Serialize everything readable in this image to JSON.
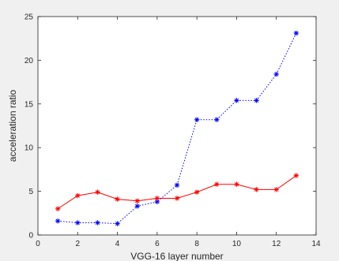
{
  "figure": {
    "background": "#f0f0f0",
    "axes_background": "#ffffff"
  },
  "chart_data": {
    "type": "line",
    "title": "",
    "xlabel": "VGG-16 layer number",
    "ylabel": "acceleration ratio",
    "xlim": [
      0,
      14
    ],
    "ylim": [
      0,
      25
    ],
    "xticks": [
      0,
      2,
      4,
      6,
      8,
      10,
      12,
      14
    ],
    "yticks": [
      0,
      5,
      10,
      15,
      20,
      25
    ],
    "grid": false,
    "legend": false,
    "x": [
      1,
      2,
      3,
      4,
      5,
      6,
      7,
      8,
      9,
      10,
      11,
      12,
      13
    ],
    "series": [
      {
        "color": "#0000ff",
        "line_style": "dotted",
        "marker": "asterisk",
        "values": [
          1.6,
          1.4,
          1.4,
          1.3,
          3.3,
          3.8,
          5.7,
          13.2,
          13.2,
          15.4,
          15.4,
          18.4,
          23.1
        ]
      },
      {
        "color": "#ff0000",
        "line_style": "solid",
        "marker": "asterisk",
        "values": [
          3.0,
          4.5,
          4.9,
          4.1,
          3.9,
          4.2,
          4.2,
          4.9,
          5.8,
          5.8,
          5.2,
          5.2,
          6.8
        ]
      }
    ]
  }
}
